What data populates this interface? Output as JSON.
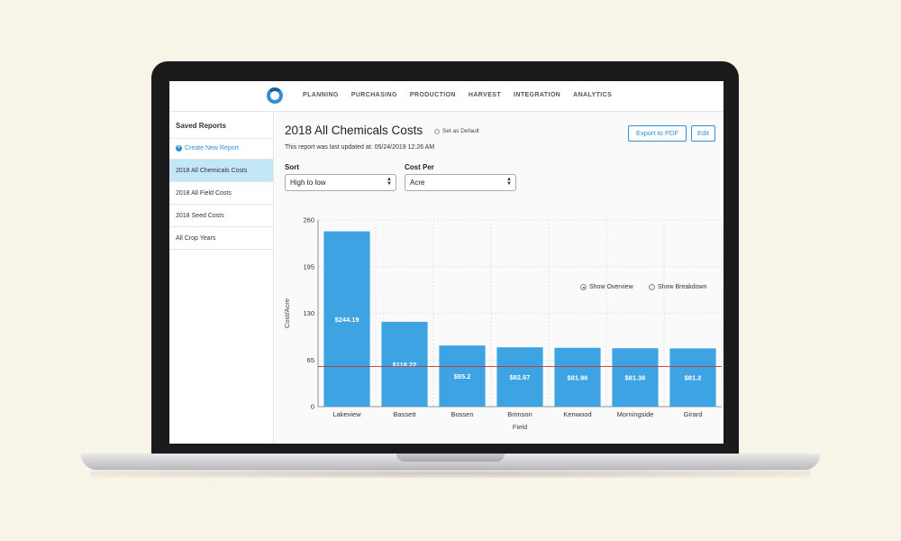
{
  "nav": {
    "items": [
      "PLANNING",
      "PURCHASING",
      "PRODUCTION",
      "HARVEST",
      "INTEGRATION",
      "ANALYTICS"
    ]
  },
  "sidebar": {
    "title": "Saved Reports",
    "create_label": "Create New Report",
    "reports": [
      {
        "label": "2018 All Chemicals Costs",
        "active": true
      },
      {
        "label": "2018 All Field Costs",
        "active": false
      },
      {
        "label": "2018 Seed Costs",
        "active": false
      },
      {
        "label": "All Crop Years",
        "active": false
      }
    ]
  },
  "report": {
    "title": "2018 All Chemicals Costs",
    "default_label": "Set as Default",
    "updated_text": "This report was last updated at: 05/24/2019 12:26 AM",
    "export_label": "Export to PDF",
    "edit_label": "Edit",
    "sort_label": "Sort",
    "sort_value": "High to low",
    "costper_label": "Cost Per",
    "costper_value": "Acre",
    "overview_label": "Show Overview",
    "breakdown_label": "Show Breakdown"
  },
  "colors": {
    "accent": "#2e8ed6",
    "bar": "#3ea3e3",
    "reference_line": "#c0392b",
    "active_item": "#c3e7f7"
  },
  "chart_data": {
    "type": "bar",
    "categories": [
      "Lakeview",
      "Bassett",
      "Bossen",
      "Brimson",
      "Kenwood",
      "Morningside",
      "Girard"
    ],
    "values": [
      244.19,
      118.22,
      85.2,
      82.67,
      81.96,
      81.36,
      81.2
    ],
    "value_labels": [
      "$244.19",
      "$118.22",
      "$85.2",
      "$82.67",
      "$81.96",
      "$81.36",
      "$81.2"
    ],
    "xlabel": "Field",
    "ylabel": "Cost/Acre",
    "ylim": [
      0,
      260
    ],
    "yticks": [
      0,
      65,
      130,
      195,
      260
    ],
    "reference_value": 56,
    "grid": true
  }
}
